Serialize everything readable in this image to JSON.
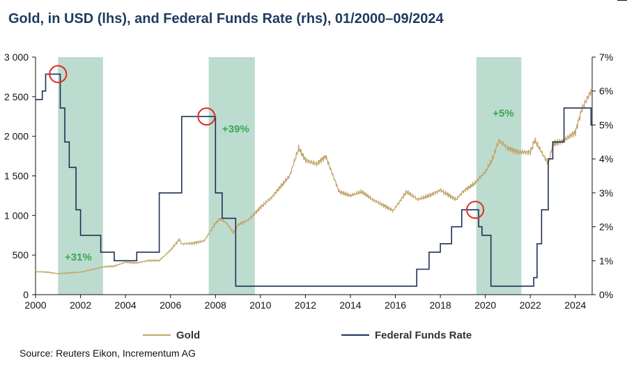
{
  "title": "Gold, in USD (lhs), and Federal Funds Rate (rhs), 01/2000–09/2024",
  "source": "Source: Reuters Eikon, Incrementum AG",
  "colors": {
    "gold": "#c2a66b",
    "ffr": "#1f2f57",
    "shade": "#bcdccf",
    "circle": "#e02b20",
    "annot": "#3aa655",
    "title": "#1e3a5f"
  },
  "chart_data": {
    "type": "line",
    "xlim": [
      2000,
      2024.75
    ],
    "x_ticks": [
      "2000",
      "2002",
      "2004",
      "2006",
      "2008",
      "2010",
      "2012",
      "2014",
      "2016",
      "2018",
      "2020",
      "2022",
      "2024"
    ],
    "y_left": {
      "lim": [
        0,
        3000
      ],
      "ticks": [
        "0",
        "500",
        "1 000",
        "1 500",
        "2 000",
        "2 500",
        "3 000"
      ]
    },
    "y_right": {
      "lim": [
        0,
        7
      ],
      "ticks": [
        "0%",
        "1%",
        "2%",
        "3%",
        "4%",
        "5%",
        "6%",
        "7%"
      ]
    },
    "shaded_periods": [
      [
        2001.0,
        2003.0
      ],
      [
        2007.7,
        2009.75
      ],
      [
        2019.6,
        2021.6
      ]
    ],
    "series": [
      {
        "name": "Gold",
        "axis": "left",
        "x": [
          2000.0,
          2000.5,
          2001.0,
          2001.5,
          2002.0,
          2002.5,
          2003.0,
          2003.5,
          2004.0,
          2004.5,
          2005.0,
          2005.5,
          2006.0,
          2006.4,
          2006.5,
          2007.0,
          2007.5,
          2008.0,
          2008.2,
          2008.5,
          2008.8,
          2009.0,
          2009.5,
          2010.0,
          2010.5,
          2011.0,
          2011.3,
          2011.7,
          2012.0,
          2012.5,
          2012.9,
          2013.3,
          2013.5,
          2014.0,
          2014.5,
          2015.0,
          2015.9,
          2016.5,
          2017.0,
          2017.5,
          2018.0,
          2018.7,
          2019.0,
          2019.5,
          2020.0,
          2020.3,
          2020.6,
          2021.0,
          2021.5,
          2022.0,
          2022.2,
          2022.8,
          2023.0,
          2023.5,
          2024.0,
          2024.3,
          2024.75
        ],
        "values": [
          290,
          285,
          265,
          275,
          285,
          315,
          350,
          360,
          410,
          400,
          430,
          430,
          560,
          700,
          640,
          650,
          680,
          900,
          960,
          900,
          780,
          880,
          950,
          1100,
          1230,
          1400,
          1500,
          1850,
          1700,
          1650,
          1750,
          1450,
          1300,
          1250,
          1300,
          1200,
          1060,
          1300,
          1200,
          1250,
          1320,
          1200,
          1300,
          1400,
          1550,
          1700,
          1950,
          1850,
          1800,
          1800,
          1950,
          1650,
          1900,
          1950,
          2050,
          2350,
          2600
        ]
      },
      {
        "name": "Federal Funds Rate",
        "axis": "right",
        "x": [
          2000.0,
          2000.15,
          2000.3,
          2000.45,
          2001.0,
          2001.1,
          2001.3,
          2001.5,
          2001.8,
          2002.0,
          2002.9,
          2003.5,
          2004.5,
          2005.5,
          2006.5,
          2007.6,
          2008.0,
          2008.3,
          2008.9,
          2015.95,
          2016.95,
          2017.5,
          2018.0,
          2018.5,
          2018.95,
          2019.55,
          2019.7,
          2019.85,
          2020.15,
          2020.25,
          2022.15,
          2022.3,
          2022.5,
          2022.8,
          2023.0,
          2023.5,
          2024.7,
          2024.75
        ],
        "values": [
          5.75,
          5.75,
          6.0,
          6.5,
          6.5,
          5.5,
          4.5,
          3.75,
          2.5,
          1.75,
          1.25,
          1.0,
          1.25,
          3.0,
          5.25,
          5.25,
          3.0,
          2.25,
          0.25,
          0.25,
          0.75,
          1.25,
          1.5,
          2.0,
          2.5,
          2.5,
          2.0,
          1.75,
          1.75,
          0.25,
          0.5,
          1.5,
          2.5,
          4.0,
          4.5,
          5.5,
          5.0,
          5.0
        ]
      }
    ],
    "annotations": [
      {
        "text": "+31%",
        "x": 2001.9,
        "y_left": 430
      },
      {
        "text": "+39%",
        "x": 2008.9,
        "y_left": 2050
      },
      {
        "text": "+5%",
        "x": 2020.8,
        "y_left": 2250
      }
    ],
    "highlight_points": [
      {
        "x": 2001.0,
        "y_right": 6.5
      },
      {
        "x": 2007.6,
        "y_right": 5.25
      },
      {
        "x": 2019.55,
        "y_right": 2.5
      }
    ],
    "legend": {
      "position": "bottom",
      "gold_label": "Gold",
      "ffr_label": "Federal Funds Rate"
    },
    "grid": false
  }
}
